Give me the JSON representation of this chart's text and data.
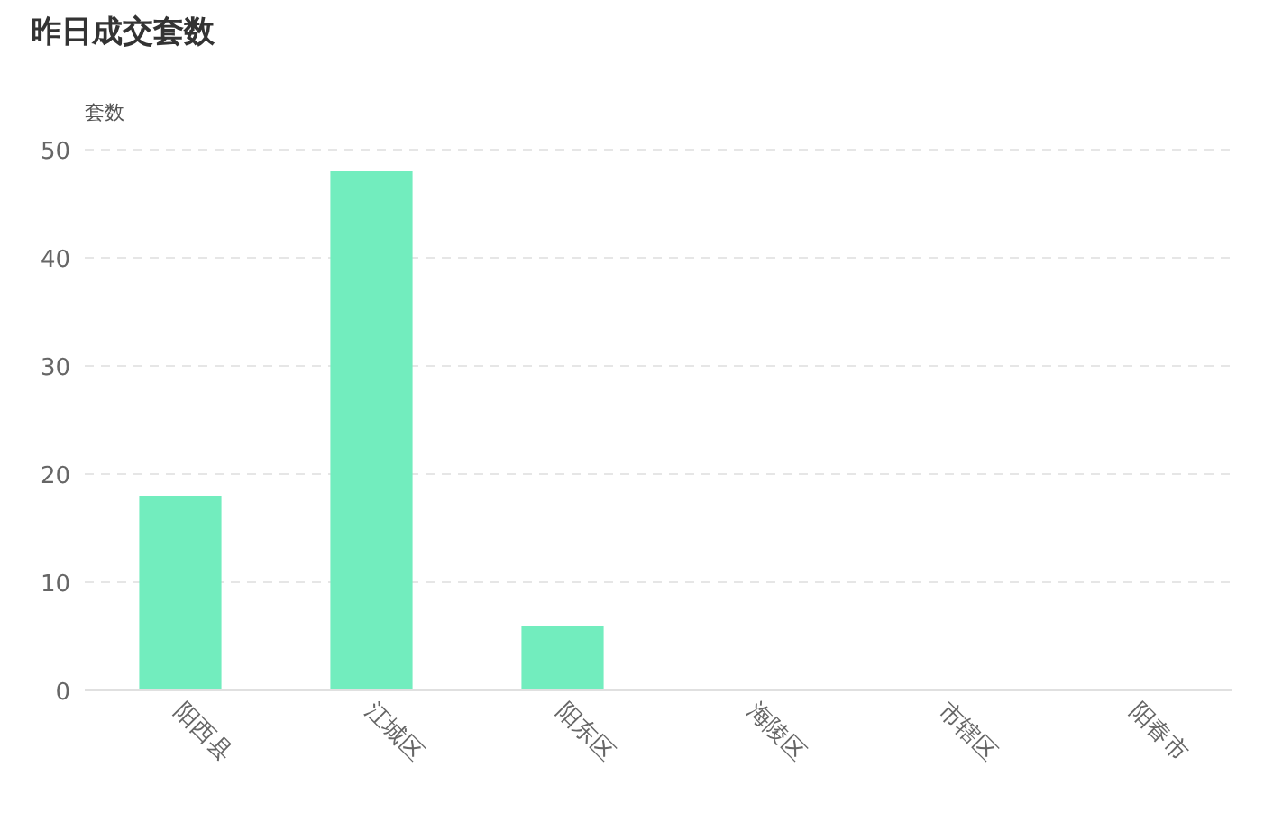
{
  "chart_data": {
    "type": "bar",
    "title": "昨日成交套数",
    "ylabel": "套数",
    "categories": [
      "阳西县",
      "江城区",
      "阳东区",
      "海陵区",
      "市辖区",
      "阳春市"
    ],
    "values": [
      18,
      48,
      6,
      0,
      0,
      0
    ],
    "color": "#72edbe",
    "ylim": [
      0,
      50
    ],
    "yticks": [
      0,
      10,
      20,
      30,
      40,
      50
    ],
    "grid": "y"
  }
}
